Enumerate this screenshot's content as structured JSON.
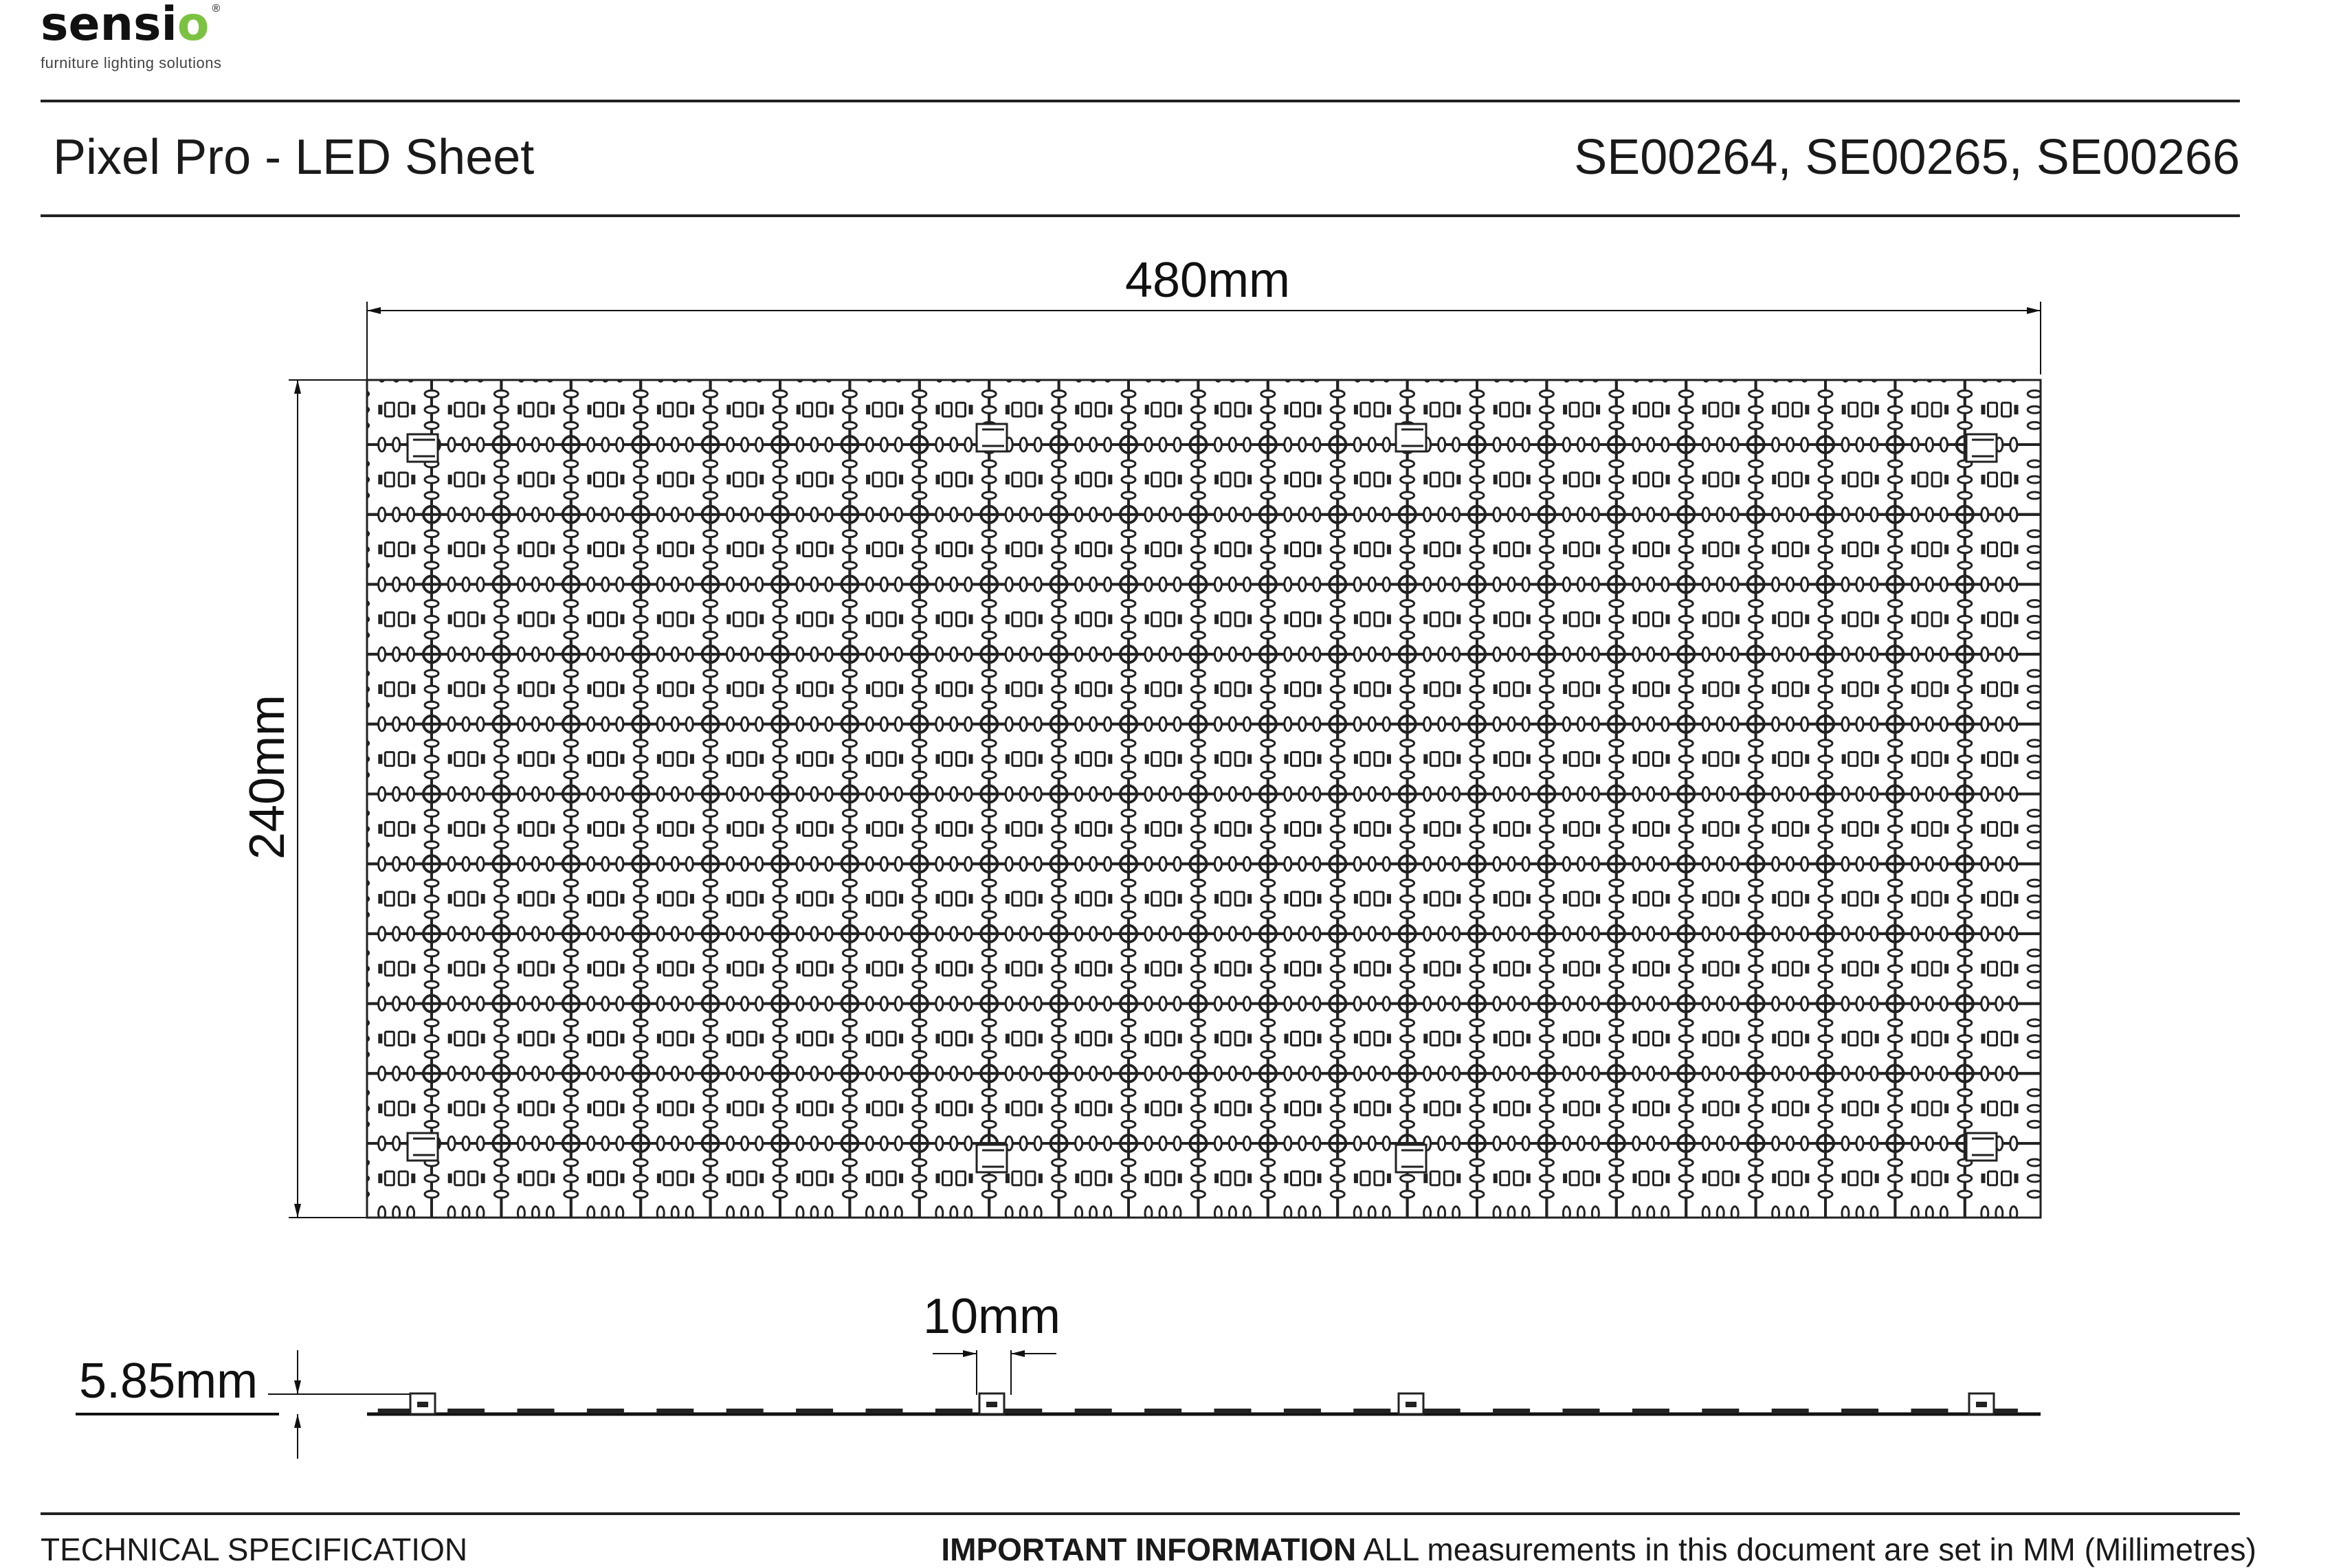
{
  "logo": {
    "brand": "sensio",
    "brand_main": "sensi",
    "brand_o": "o",
    "registered": "®",
    "tagline": "furniture lighting solutions",
    "accent_color": "#7cc242"
  },
  "header": {
    "title": "Pixel Pro - LED Sheet",
    "product_codes": "SE00264, SE00265, SE00266"
  },
  "drawing": {
    "width_label": "480mm",
    "height_label": "240mm",
    "thickness_label": "5.85mm",
    "spacing_label": "10mm"
  },
  "footer": {
    "left": "TECHNICAL SPECIFICATION",
    "important_label": "IMPORTANT INFORMATION",
    "important_text": " ALL measurements in this document are set in MM (Millimetres)"
  }
}
